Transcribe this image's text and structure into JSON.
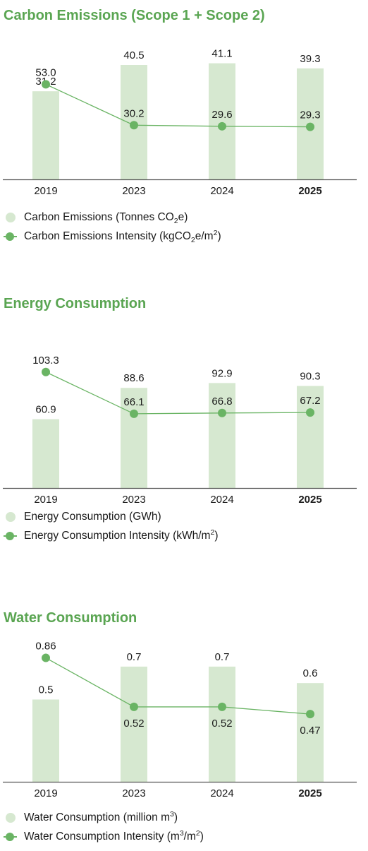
{
  "colors": {
    "title": "#5aa552",
    "bar": "#d6e8d0",
    "line": "#6ab464",
    "axis": "#555555",
    "text": "#1a1a1a"
  },
  "chart_data": [
    {
      "type": "bar",
      "title": "Carbon Emissions (Scope 1 + Scope 2)",
      "categories": [
        "2019",
        "2023",
        "2024",
        "2025"
      ],
      "highlight_category": "2025",
      "series": [
        {
          "name": "Carbon Emissions (Tonnes CO2e)",
          "type": "bar",
          "values": [
            31.2,
            40.5,
            41.1,
            39.3
          ],
          "labels": [
            "31.2",
            "40.5",
            "41.1",
            "39.3"
          ]
        },
        {
          "name": "Carbon Emissions Intensity (kgCO2e/m2)",
          "type": "line",
          "values": [
            53.0,
            30.2,
            29.6,
            29.3
          ],
          "labels": [
            "53.0",
            "30.2",
            "29.6",
            "29.3"
          ]
        }
      ],
      "legend": [
        {
          "marker": "bar",
          "parts": [
            {
              "t": "Carbon Emissions (Tonnes CO"
            },
            {
              "t": "2",
              "s": "sub"
            },
            {
              "t": "e)"
            }
          ]
        },
        {
          "marker": "line",
          "parts": [
            {
              "t": "Carbon Emissions Intensity (kgCO"
            },
            {
              "t": "2",
              "s": "sub"
            },
            {
              "t": "e/m"
            },
            {
              "t": "2",
              "s": "sup"
            },
            {
              "t": ")"
            }
          ]
        }
      ]
    },
    {
      "type": "bar",
      "title": "Energy Consumption",
      "categories": [
        "2019",
        "2023",
        "2024",
        "2025"
      ],
      "highlight_category": "2025",
      "series": [
        {
          "name": "Energy Consumption (GWh)",
          "type": "bar",
          "values": [
            60.9,
            88.6,
            92.9,
            90.3
          ],
          "labels": [
            "60.9",
            "88.6",
            "92.9",
            "90.3"
          ]
        },
        {
          "name": "Energy Consumption Intensity (kWh/m2)",
          "type": "line",
          "values": [
            103.3,
            66.1,
            66.8,
            67.2
          ],
          "labels": [
            "103.3",
            "66.1",
            "66.8",
            "67.2"
          ]
        }
      ],
      "legend": [
        {
          "marker": "bar",
          "parts": [
            {
              "t": "Energy Consumption (GWh)"
            }
          ]
        },
        {
          "marker": "line",
          "parts": [
            {
              "t": "Energy Consumption Intensity (kWh/m"
            },
            {
              "t": "2",
              "s": "sup"
            },
            {
              "t": ")"
            }
          ]
        }
      ]
    },
    {
      "type": "bar",
      "title": "Water Consumption",
      "categories": [
        "2019",
        "2023",
        "2024",
        "2025"
      ],
      "highlight_category": "2025",
      "series": [
        {
          "name": "Water Consumption (million m3)",
          "type": "bar",
          "values": [
            0.5,
            0.7,
            0.7,
            0.6
          ],
          "labels": [
            "0.5",
            "0.7",
            "0.7",
            "0.6"
          ]
        },
        {
          "name": "Water Consumption Intensity (m3/m2)",
          "type": "line",
          "values": [
            0.86,
            0.52,
            0.52,
            0.47
          ],
          "labels": [
            "0.86",
            "0.52",
            "0.52",
            "0.47"
          ]
        }
      ],
      "legend": [
        {
          "marker": "bar",
          "parts": [
            {
              "t": "Water Consumption (million m"
            },
            {
              "t": "3",
              "s": "sup"
            },
            {
              "t": ")"
            }
          ]
        },
        {
          "marker": "line",
          "parts": [
            {
              "t": "Water Consumption Intensity (m"
            },
            {
              "t": "3",
              "s": "sup"
            },
            {
              "t": "/m"
            },
            {
              "t": "2",
              "s": "sup"
            },
            {
              "t": ")"
            }
          ]
        }
      ]
    }
  ]
}
